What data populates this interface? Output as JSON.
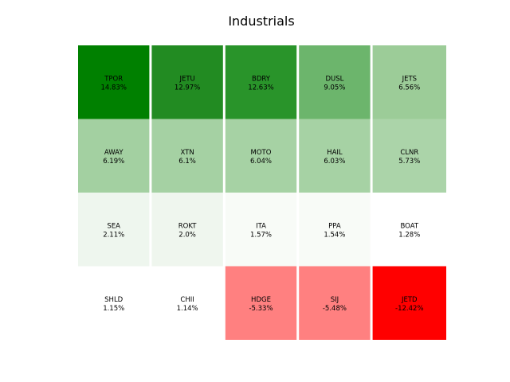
{
  "chart_data": {
    "type": "heatmap",
    "title": "Industrials",
    "xlabel": "",
    "ylabel": "",
    "grid": false,
    "rows": 4,
    "cols": 5,
    "cells": [
      {
        "ticker": "TPOR",
        "value_label": "14.83%",
        "value": 14.83,
        "color": "#008000"
      },
      {
        "ticker": "JETU",
        "value_label": "12.97%",
        "value": 12.97,
        "color": "#228b22"
      },
      {
        "ticker": "BDRY",
        "value_label": "12.63%",
        "value": 12.63,
        "color": "#29942a"
      },
      {
        "ticker": "DUSL",
        "value_label": "9.05%",
        "value": 9.05,
        "color": "#6cb56c"
      },
      {
        "ticker": "JETS",
        "value_label": "6.56%",
        "value": 6.56,
        "color": "#9ccc98"
      },
      {
        "ticker": "AWAY",
        "value_label": "6.19%",
        "value": 6.19,
        "color": "#a3d0a1"
      },
      {
        "ticker": "XTN",
        "value_label": "6.1%",
        "value": 6.1,
        "color": "#a5d1a3"
      },
      {
        "ticker": "MOTO",
        "value_label": "6.04%",
        "value": 6.04,
        "color": "#a6d2a4"
      },
      {
        "ticker": "HAIL",
        "value_label": "6.03%",
        "value": 6.03,
        "color": "#a6d2a4"
      },
      {
        "ticker": "CLNR",
        "value_label": "5.73%",
        "value": 5.73,
        "color": "#abd4a9"
      },
      {
        "ticker": "SEA",
        "value_label": "2.11%",
        "value": 2.11,
        "color": "#eef6ee"
      },
      {
        "ticker": "ROKT",
        "value_label": "2.0%",
        "value": 2.0,
        "color": "#eff6ee"
      },
      {
        "ticker": "ITA",
        "value_label": "1.57%",
        "value": 1.57,
        "color": "#f8fbf7"
      },
      {
        "ticker": "PPA",
        "value_label": "1.54%",
        "value": 1.54,
        "color": "#f8fbf7"
      },
      {
        "ticker": "BOAT",
        "value_label": "1.28%",
        "value": 1.28,
        "color": "#ffffff"
      },
      {
        "ticker": "SHLD",
        "value_label": "1.15%",
        "value": 1.15,
        "color": "#ffffff"
      },
      {
        "ticker": "CHII",
        "value_label": "1.14%",
        "value": 1.14,
        "color": "#ffffff"
      },
      {
        "ticker": "HDGE",
        "value_label": "-5.33%",
        "value": -5.33,
        "color": "#ff8080"
      },
      {
        "ticker": "SIJ",
        "value_label": "-5.48%",
        "value": -5.48,
        "color": "#ff8080"
      },
      {
        "ticker": "JETD",
        "value_label": "-12.42%",
        "value": -12.42,
        "color": "#ff0000"
      }
    ]
  }
}
